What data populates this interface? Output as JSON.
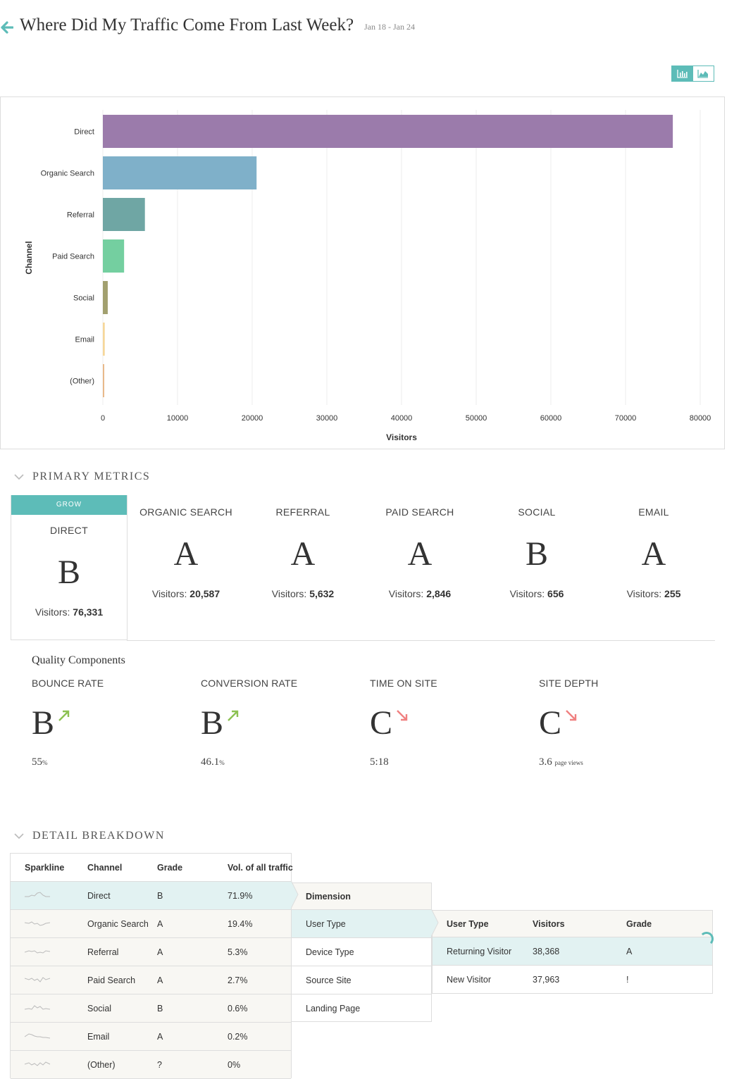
{
  "header": {
    "title": "Where Did My Traffic Come From Last Week?",
    "date_range": "Jan 18 - Jan 24"
  },
  "colors": {
    "accent": "#5dbcb8",
    "selected_row": "#e2f2f2",
    "row_bg": "#f8f7f3",
    "trend_up": "#8cc152",
    "trend_down": "#f08080"
  },
  "view_toggle": {
    "options": [
      "bar-chart-icon",
      "area-chart-icon"
    ],
    "active": "bar-chart-icon"
  },
  "chart_data": {
    "type": "bar",
    "orientation": "horizontal",
    "categories": [
      "Direct",
      "Organic Search",
      "Referral",
      "Paid Search",
      "Social",
      "Email",
      "(Other)"
    ],
    "values": [
      76331,
      20587,
      5632,
      2846,
      656,
      255,
      30
    ],
    "colors": [
      "#9b7bab",
      "#7fb0c9",
      "#6fa6a4",
      "#74cfa0",
      "#a2a06f",
      "#f6d79a",
      "#e8b98a"
    ],
    "xlabel": "Visitors",
    "ylabel": "Channel",
    "xlim": [
      0,
      80000
    ],
    "xticks": [
      "0",
      "10000",
      "20000",
      "30000",
      "40000",
      "50000",
      "60000",
      "70000",
      "80000"
    ],
    "grid": true
  },
  "primary": {
    "title": "PRIMARY METRICS",
    "active_tag": "GROW",
    "visitors_label": "Visitors:",
    "items": [
      {
        "name": "DIRECT",
        "grade": "B",
        "visitors": "76,331"
      },
      {
        "name": "ORGANIC SEARCH",
        "grade": "A",
        "visitors": "20,587"
      },
      {
        "name": "REFERRAL",
        "grade": "A",
        "visitors": "5,632"
      },
      {
        "name": "PAID SEARCH",
        "grade": "A",
        "visitors": "2,846"
      },
      {
        "name": "SOCIAL",
        "grade": "B",
        "visitors": "656"
      },
      {
        "name": "EMAIL",
        "grade": "A",
        "visitors": "255"
      }
    ]
  },
  "quality": {
    "title": "Quality Components",
    "items": [
      {
        "name": "BOUNCE RATE",
        "grade": "B",
        "trend": "up",
        "value": "55",
        "unit": "%"
      },
      {
        "name": "CONVERSION RATE",
        "grade": "B",
        "trend": "up",
        "value": "46.1",
        "unit": "%"
      },
      {
        "name": "TIME ON SITE",
        "grade": "C",
        "trend": "down",
        "value": "5:18",
        "unit": ""
      },
      {
        "name": "SITE DEPTH",
        "grade": "C",
        "trend": "down",
        "value": "3.6",
        "unit": "page views"
      }
    ]
  },
  "detail": {
    "title": "DETAIL BREAKDOWN",
    "channel_table": {
      "headers": [
        "Sparkline",
        "Channel",
        "Grade",
        "Vol. of all traffic"
      ],
      "rows": [
        {
          "channel": "Direct",
          "grade": "B",
          "vol": "71.9%"
        },
        {
          "channel": "Organic Search",
          "grade": "A",
          "vol": "19.4%"
        },
        {
          "channel": "Referral",
          "grade": "A",
          "vol": "5.3%"
        },
        {
          "channel": "Paid Search",
          "grade": "A",
          "vol": "2.7%"
        },
        {
          "channel": "Social",
          "grade": "B",
          "vol": "0.6%"
        },
        {
          "channel": "Email",
          "grade": "A",
          "vol": "0.2%"
        },
        {
          "channel": "(Other)",
          "grade": "?",
          "vol": "0%"
        }
      ],
      "selected": 0
    },
    "dimension_table": {
      "header": "Dimension",
      "rows": [
        "User Type",
        "Device Type",
        "Source Site",
        "Landing Page"
      ],
      "selected": 0
    },
    "user_type_table": {
      "headers": [
        "User Type",
        "Visitors",
        "Grade"
      ],
      "rows": [
        {
          "type": "Returning Visitor",
          "visitors": "38,368",
          "grade": "A"
        },
        {
          "type": "New Visitor",
          "visitors": "37,963",
          "grade": "!"
        }
      ],
      "selected": 0
    }
  }
}
